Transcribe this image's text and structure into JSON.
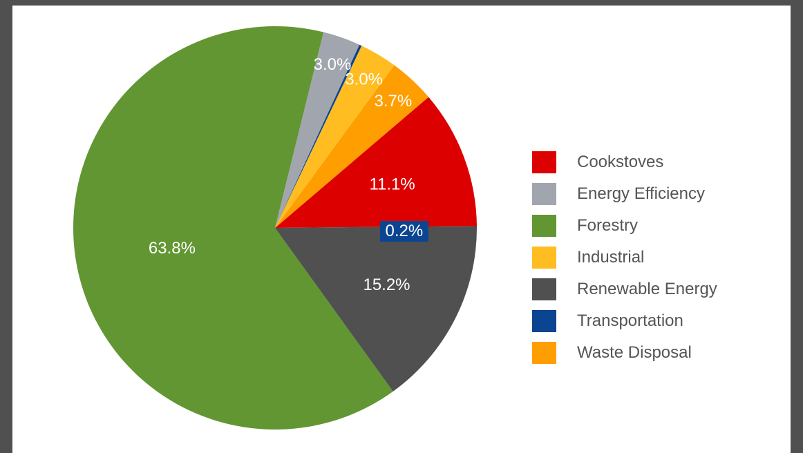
{
  "chart_data": {
    "type": "pie",
    "title": "",
    "slices": [
      {
        "name": "Cookstoves",
        "value": 11.1,
        "label": "11.1%",
        "color": "#dd0000"
      },
      {
        "name": "Waste Disposal",
        "value": 3.7,
        "label": "3.7%",
        "color": "#ff9e00"
      },
      {
        "name": "Industrial",
        "value": 3.0,
        "label": "3.0%",
        "color": "#ffbd22"
      },
      {
        "name": "Transportation",
        "value": 0.2,
        "label": "0.2%",
        "color": "#0b4591"
      },
      {
        "name": "Energy Efficiency",
        "value": 3.0,
        "label": "3.0%",
        "color": "#a1a6ae"
      },
      {
        "name": "Forestry",
        "value": 63.8,
        "label": "63.8%",
        "color": "#629632"
      },
      {
        "name": "Renewable Energy",
        "value": 15.2,
        "label": "15.2%",
        "color": "#505050"
      }
    ],
    "legend": {
      "position": "right",
      "entries": [
        {
          "label": "Cookstoves",
          "color": "#dd0000"
        },
        {
          "label": "Energy Efficiency",
          "color": "#a1a6ae"
        },
        {
          "label": "Forestry",
          "color": "#629632"
        },
        {
          "label": "Industrial",
          "color": "#ffbd22"
        },
        {
          "label": "Renewable Energy",
          "color": "#505050"
        },
        {
          "label": "Transportation",
          "color": "#0b4591"
        },
        {
          "label": "Waste Disposal",
          "color": "#ff9e00"
        }
      ]
    }
  }
}
